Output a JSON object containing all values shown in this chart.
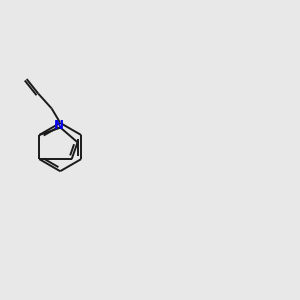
{
  "bg_color": "#e8e8e8",
  "bond_color": "#1a1a1a",
  "N_color": "#0000ee",
  "S_color": "#888800",
  "O_color": "#dd0000",
  "H_color": "#008080",
  "line_width": 1.4,
  "figsize": [
    3.0,
    3.0
  ],
  "dpi": 100
}
